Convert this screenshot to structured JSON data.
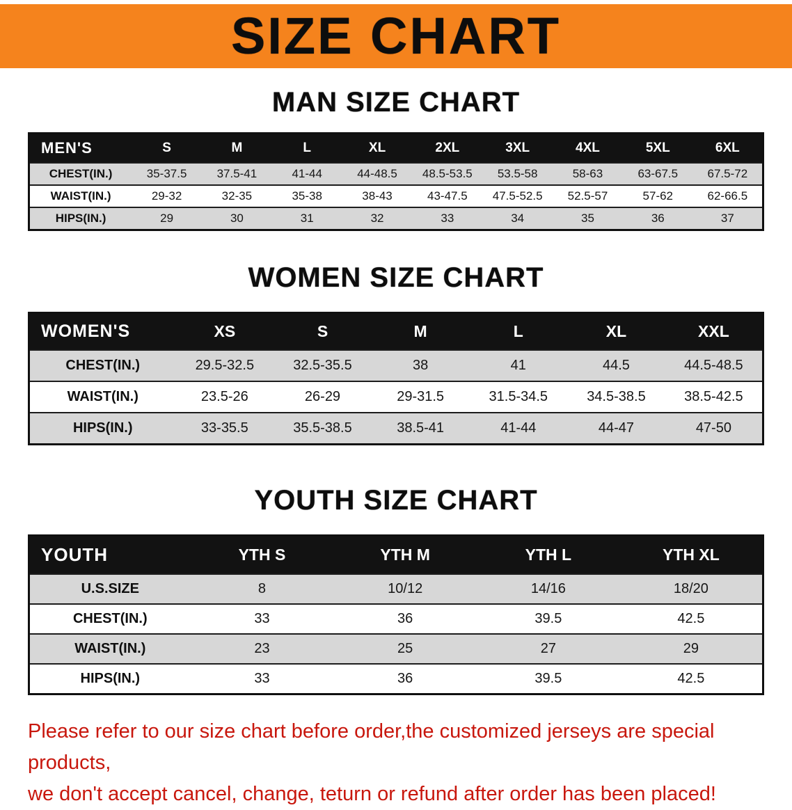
{
  "colors": {
    "banner_bg": "#F5831D",
    "table_header_bg": "#121212",
    "row_stripe": "#D7D7D7",
    "disclaimer_red": "#C8170D"
  },
  "banner": {
    "title": "SIZE CHART"
  },
  "men": {
    "heading": "MAN SIZE CHART",
    "table": {
      "header": [
        "MEN'S",
        "S",
        "M",
        "L",
        "XL",
        "2XL",
        "3XL",
        "4XL",
        "5XL",
        "6XL"
      ],
      "rows": [
        [
          "CHEST(IN.)",
          "35-37.5",
          "37.5-41",
          "41-44",
          "44-48.5",
          "48.5-53.5",
          "53.5-58",
          "58-63",
          "63-67.5",
          "67.5-72"
        ],
        [
          "WAIST(IN.)",
          "29-32",
          "32-35",
          "35-38",
          "38-43",
          "43-47.5",
          "47.5-52.5",
          "52.5-57",
          "57-62",
          "62-66.5"
        ],
        [
          "HIPS(IN.)",
          "29",
          "30",
          "31",
          "32",
          "33",
          "34",
          "35",
          "36",
          "37"
        ]
      ]
    }
  },
  "women": {
    "heading": "WOMEN SIZE CHART",
    "table": {
      "header": [
        "WOMEN'S",
        "XS",
        "S",
        "M",
        "L",
        "XL",
        "XXL"
      ],
      "rows": [
        [
          "CHEST(IN.)",
          "29.5-32.5",
          "32.5-35.5",
          "38",
          "41",
          "44.5",
          "44.5-48.5"
        ],
        [
          "WAIST(IN.)",
          "23.5-26",
          "26-29",
          "29-31.5",
          "31.5-34.5",
          "34.5-38.5",
          "38.5-42.5"
        ],
        [
          "HIPS(IN.)",
          "33-35.5",
          "35.5-38.5",
          "38.5-41",
          "41-44",
          "44-47",
          "47-50"
        ]
      ]
    }
  },
  "youth": {
    "heading": "YOUTH SIZE CHART",
    "table": {
      "header": [
        "YOUTH",
        "YTH S",
        "YTH M",
        "YTH L",
        "YTH XL"
      ],
      "rows": [
        [
          "U.S.SIZE",
          "8",
          "10/12",
          "14/16",
          "18/20"
        ],
        [
          "CHEST(IN.)",
          "33",
          "36",
          "39.5",
          "42.5"
        ],
        [
          "WAIST(IN.)",
          "23",
          "25",
          "27",
          "29"
        ],
        [
          "HIPS(IN.)",
          "33",
          "36",
          "39.5",
          "42.5"
        ]
      ]
    }
  },
  "disclaimer": {
    "line1": "Please refer to our size chart before order,the customized jerseys are special products,",
    "line2": "we don't accept cancel, change, teturn or refund after order has been placed!"
  }
}
